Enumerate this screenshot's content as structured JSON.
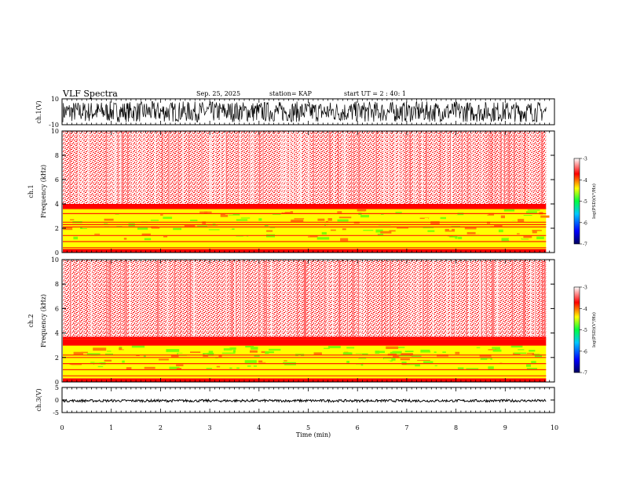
{
  "header": {
    "title": "VLF Spectra",
    "date": "Sep. 25, 2025",
    "station": "station= KAP",
    "start_ut": "start  UT =   2 : 40: 1"
  },
  "colors": {
    "spec_stops": [
      "#000060",
      "#0000ff",
      "#00c8ff",
      "#00ff40",
      "#ffff00",
      "#ff0000",
      "#ffffff"
    ],
    "waveform": "#000000"
  },
  "chart_data": [
    {
      "type": "line",
      "name": "ch1-waveform",
      "ylabel": "ch.1(V)",
      "ylim": [
        -10,
        10
      ],
      "yticks": [
        "10",
        "-10"
      ],
      "xlim": [
        0,
        10
      ],
      "data_end_min": 9.83,
      "amplitude_envelope": [
        -8,
        8
      ]
    },
    {
      "type": "heatmap",
      "name": "ch1-spectrogram",
      "ylabel": "Frequency  (kHz)",
      "panel_label": "ch.1",
      "ylim": [
        0,
        10
      ],
      "yticks": [
        "0",
        "2",
        "4",
        "6",
        "8",
        "10"
      ],
      "xlim": [
        0,
        10
      ],
      "data_end_min": 9.83,
      "bands": [
        {
          "from_khz": 0,
          "to_khz": 0.3,
          "level": -3.9
        },
        {
          "from_khz": 0.3,
          "to_khz": 1.0,
          "level": -4.4
        },
        {
          "from_khz": 1.0,
          "to_khz": 3.6,
          "level": -4.8
        },
        {
          "from_khz": 3.6,
          "to_khz": 4.0,
          "level": -4.1
        },
        {
          "from_khz": 4.0,
          "to_khz": 10,
          "level": -3.3
        }
      ],
      "lines_khz": [
        0.4,
        0.9,
        1.4,
        2.1,
        2.3,
        2.5,
        3.2,
        3.6
      ],
      "colorbar": {
        "label": "log(PSD)(V²/Hz)",
        "ticks": [
          "-3",
          "-4",
          "-5",
          "-6",
          "-7"
        ],
        "range": [
          -7,
          -3
        ]
      }
    },
    {
      "type": "heatmap",
      "name": "ch2-spectrogram",
      "ylabel": "Frequency  (kHz)",
      "panel_label": "ch.2",
      "ylim": [
        0,
        10
      ],
      "yticks": [
        "0",
        "2",
        "4",
        "6",
        "8",
        "10"
      ],
      "xlim": [
        0,
        10
      ],
      "data_end_min": 9.83,
      "bands": [
        {
          "from_khz": 0,
          "to_khz": 0.3,
          "level": -3.9
        },
        {
          "from_khz": 0.3,
          "to_khz": 1.0,
          "level": -4.5
        },
        {
          "from_khz": 1.0,
          "to_khz": 3.0,
          "level": -4.9
        },
        {
          "from_khz": 3.0,
          "to_khz": 3.7,
          "level": -4.2
        },
        {
          "from_khz": 3.7,
          "to_khz": 10,
          "level": -3.3
        }
      ],
      "lines_khz": [
        0.5,
        1.0,
        1.5,
        2.0,
        2.2,
        3.0,
        3.5
      ],
      "colorbar": {
        "label": "log(PSD)(V²/Hz)",
        "ticks": [
          "-3",
          "-4",
          "-5",
          "-6",
          "-7"
        ],
        "range": [
          -7,
          -3
        ]
      }
    },
    {
      "type": "line",
      "name": "ch3-waveform",
      "ylabel": "ch.3(V)",
      "ylim": [
        -5,
        5
      ],
      "yticks": [
        "5",
        "0",
        "-5"
      ],
      "xlim": [
        0,
        10
      ],
      "data_end_min": 9.83,
      "value_band": [
        -0.8,
        0.2
      ]
    }
  ],
  "xaxis": {
    "label": "Time  (min)",
    "ticks": [
      "0",
      "1",
      "2",
      "3",
      "4",
      "5",
      "6",
      "7",
      "8",
      "9",
      "10"
    ]
  }
}
